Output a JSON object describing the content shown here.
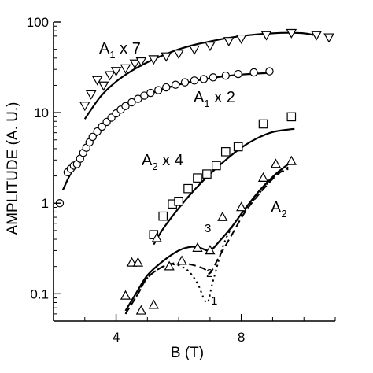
{
  "chart_data": {
    "type": "scatter",
    "xlabel": "B (T)",
    "ylabel": "AMPLITUDE (A. U.)",
    "xlim": [
      2.0,
      11.0
    ],
    "ylim": [
      0.05,
      100
    ],
    "yscale": "log",
    "x_ticks": [
      4,
      8
    ],
    "x_tick_labels": [
      "4",
      "8"
    ],
    "y_ticks": [
      0.1,
      1,
      10,
      100
    ],
    "y_tick_labels": [
      "0.1",
      "1",
      "10",
      "100"
    ],
    "grid": false,
    "series": [
      {
        "name": "A1 x 7",
        "marker": "triangle-down",
        "points": [
          [
            3.0,
            12
          ],
          [
            3.2,
            16
          ],
          [
            3.4,
            23
          ],
          [
            3.6,
            20
          ],
          [
            3.8,
            26
          ],
          [
            4.0,
            29
          ],
          [
            4.3,
            31
          ],
          [
            4.6,
            35
          ],
          [
            4.8,
            37
          ],
          [
            5.2,
            39
          ],
          [
            5.6,
            42
          ],
          [
            6.0,
            45
          ],
          [
            6.5,
            50
          ],
          [
            7.0,
            55
          ],
          [
            7.6,
            62
          ],
          [
            8.0,
            66
          ],
          [
            8.8,
            72
          ],
          [
            9.6,
            76
          ],
          [
            10.4,
            72
          ],
          [
            10.8,
            68
          ]
        ],
        "fit": [
          [
            3.0,
            8.5
          ],
          [
            3.5,
            15
          ],
          [
            4.0,
            22
          ],
          [
            4.5,
            29
          ],
          [
            5.0,
            36
          ],
          [
            5.5,
            43
          ],
          [
            6.0,
            50
          ],
          [
            6.5,
            56
          ],
          [
            7.0,
            61
          ],
          [
            7.5,
            66
          ],
          [
            8.0,
            70
          ],
          [
            8.5,
            73
          ],
          [
            9.0,
            75
          ],
          [
            9.5,
            76
          ],
          [
            10.0,
            75
          ],
          [
            10.3,
            72
          ]
        ]
      },
      {
        "name": "A1 x 2",
        "marker": "circle",
        "points": [
          [
            2.2,
            1.0
          ],
          [
            2.45,
            2.2
          ],
          [
            2.55,
            2.4
          ],
          [
            2.65,
            2.6
          ],
          [
            2.75,
            2.7
          ],
          [
            2.85,
            3.1
          ],
          [
            2.95,
            3.6
          ],
          [
            3.05,
            4.1
          ],
          [
            3.15,
            4.7
          ],
          [
            3.25,
            5.4
          ],
          [
            3.4,
            6.2
          ],
          [
            3.55,
            7.0
          ],
          [
            3.7,
            7.9
          ],
          [
            3.85,
            8.8
          ],
          [
            4.0,
            9.8
          ],
          [
            4.15,
            10.8
          ],
          [
            4.3,
            11.8
          ],
          [
            4.5,
            13.0
          ],
          [
            4.7,
            14.2
          ],
          [
            4.9,
            15.4
          ],
          [
            5.1,
            16.5
          ],
          [
            5.35,
            17.7
          ],
          [
            5.6,
            19.0
          ],
          [
            5.9,
            20.3
          ],
          [
            6.2,
            21.6
          ],
          [
            6.5,
            22.6
          ],
          [
            6.8,
            23.5
          ],
          [
            7.1,
            24.5
          ],
          [
            7.5,
            25.6
          ],
          [
            7.9,
            26.7
          ],
          [
            8.4,
            27.8
          ],
          [
            8.9,
            28.6
          ]
        ],
        "fit": [
          [
            2.3,
            1.4
          ],
          [
            2.6,
            2.3
          ],
          [
            3.0,
            3.8
          ],
          [
            3.5,
            6.3
          ],
          [
            4.0,
            9.6
          ],
          [
            4.5,
            12.8
          ],
          [
            5.0,
            15.6
          ],
          [
            5.5,
            18.2
          ],
          [
            6.0,
            20.4
          ],
          [
            6.5,
            22.3
          ],
          [
            7.0,
            23.9
          ],
          [
            7.5,
            25.3
          ],
          [
            8.0,
            26.3
          ],
          [
            8.5,
            27.0
          ],
          [
            8.8,
            27.3
          ]
        ]
      },
      {
        "name": "A2 x 4",
        "marker": "square",
        "points": [
          [
            5.2,
            0.45
          ],
          [
            5.5,
            0.72
          ],
          [
            5.8,
            0.98
          ],
          [
            6.0,
            1.05
          ],
          [
            6.3,
            1.45
          ],
          [
            6.6,
            1.9
          ],
          [
            6.9,
            2.1
          ],
          [
            7.2,
            2.6
          ],
          [
            7.5,
            3.7
          ],
          [
            7.9,
            4.2
          ],
          [
            8.7,
            7.5
          ],
          [
            9.6,
            9.0
          ]
        ],
        "fit": [
          [
            5.2,
            0.35
          ],
          [
            5.5,
            0.52
          ],
          [
            6.0,
            0.88
          ],
          [
            6.5,
            1.4
          ],
          [
            7.0,
            2.1
          ],
          [
            7.5,
            3.0
          ],
          [
            8.0,
            4.1
          ],
          [
            8.5,
            5.2
          ],
          [
            9.0,
            6.1
          ],
          [
            9.5,
            6.5
          ],
          [
            9.7,
            6.6
          ]
        ]
      },
      {
        "name": "A2",
        "marker": "triangle-up",
        "points": [
          [
            4.3,
            0.095
          ],
          [
            4.5,
            0.22
          ],
          [
            4.7,
            0.22
          ],
          [
            4.8,
            0.065
          ],
          [
            5.2,
            0.075
          ],
          [
            5.3,
            0.41
          ],
          [
            5.7,
            0.2
          ],
          [
            6.1,
            0.23
          ],
          [
            6.6,
            0.32
          ],
          [
            7.0,
            0.3
          ],
          [
            7.4,
            0.7
          ],
          [
            8.0,
            0.9
          ],
          [
            8.7,
            1.9
          ],
          [
            9.1,
            2.7
          ],
          [
            9.6,
            2.9
          ]
        ],
        "fit": [
          [
            4.3,
            0.065
          ],
          [
            4.7,
            0.11
          ],
          [
            5.0,
            0.16
          ],
          [
            5.5,
            0.23
          ],
          [
            6.0,
            0.3
          ],
          [
            6.4,
            0.33
          ],
          [
            6.7,
            0.32
          ],
          [
            7.0,
            0.3
          ],
          [
            7.3,
            0.38
          ],
          [
            7.7,
            0.55
          ],
          [
            8.1,
            0.85
          ],
          [
            8.6,
            1.4
          ],
          [
            9.1,
            2.1
          ],
          [
            9.5,
            2.7
          ]
        ]
      }
    ],
    "model_curves": [
      {
        "label": "2",
        "style": "dashed",
        "points": [
          [
            4.3,
            0.06
          ],
          [
            4.7,
            0.1
          ],
          [
            5.0,
            0.15
          ],
          [
            5.5,
            0.2
          ],
          [
            6.0,
            0.22
          ],
          [
            6.4,
            0.21
          ],
          [
            6.8,
            0.19
          ],
          [
            7.0,
            0.17
          ],
          [
            7.3,
            0.26
          ],
          [
            7.7,
            0.45
          ],
          [
            8.1,
            0.78
          ],
          [
            8.6,
            1.3
          ],
          [
            9.1,
            2.0
          ],
          [
            9.5,
            2.5
          ]
        ]
      },
      {
        "label": "1",
        "style": "dotted",
        "points": [
          [
            4.3,
            0.06
          ],
          [
            4.7,
            0.1
          ],
          [
            5.0,
            0.15
          ],
          [
            5.5,
            0.2
          ],
          [
            5.9,
            0.21
          ],
          [
            6.3,
            0.18
          ],
          [
            6.6,
            0.13
          ],
          [
            6.9,
            0.08
          ],
          [
            7.1,
            0.14
          ],
          [
            7.5,
            0.4
          ],
          [
            8.0,
            0.75
          ],
          [
            8.5,
            1.2
          ],
          [
            9.0,
            1.9
          ],
          [
            9.5,
            2.4
          ]
        ]
      }
    ],
    "curve_labels": {
      "solid": "3",
      "dashed": "2",
      "dotted": "1"
    },
    "annotations": [
      {
        "base": "A",
        "sub": "1",
        "suffix": " x 7"
      },
      {
        "base": "A",
        "sub": "1",
        "suffix": " x 2"
      },
      {
        "base": "A",
        "sub": "2",
        "suffix": " x 4"
      },
      {
        "base": "A",
        "sub": "2",
        "suffix": ""
      }
    ]
  }
}
